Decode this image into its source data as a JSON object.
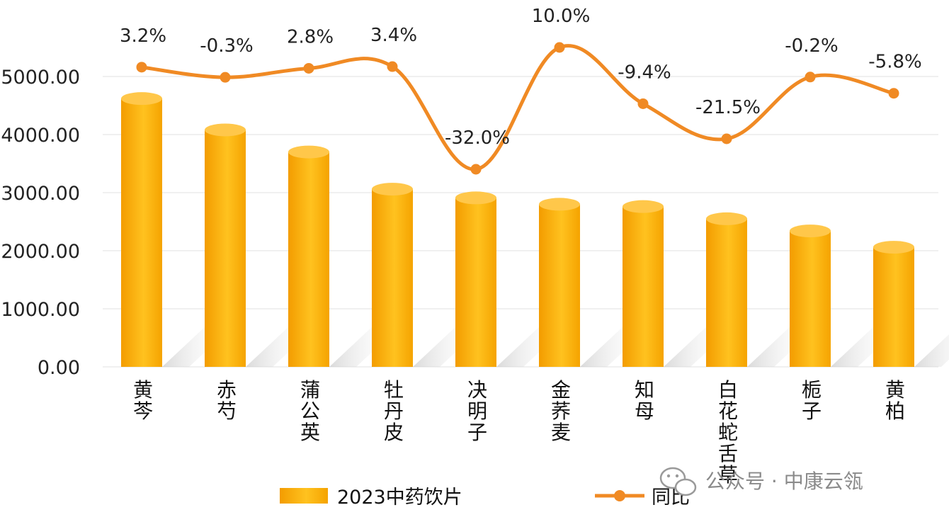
{
  "chart_data": {
    "type": "bar",
    "categories": [
      "黄芩",
      "赤芍",
      "蒲公英",
      "牡丹皮",
      "决明子",
      "金荞麦",
      "知母",
      "白花蛇舌草",
      "栀子",
      "黄柏"
    ],
    "series": [
      {
        "name": "2023中药饮片",
        "type": "bar",
        "values": [
          4620,
          4080,
          3700,
          3060,
          2910,
          2800,
          2760,
          2550,
          2340,
          2060
        ]
      },
      {
        "name": "同比",
        "type": "line",
        "values": [
          3.2,
          -0.3,
          2.8,
          3.4,
          -32.0,
          10.0,
          -9.4,
          -21.5,
          -0.2,
          -5.8
        ],
        "labels": [
          "3.2%",
          "-0.3%",
          "2.8%",
          "3.4%",
          "-32.0%",
          "10.0%",
          "-9.4%",
          "-21.5%",
          "-0.2%",
          "-5.8%"
        ]
      }
    ],
    "y_ticks": [
      "0.00",
      "1000.00",
      "2000.00",
      "3000.00",
      "4000.00",
      "5000.00"
    ],
    "ylim": [
      0,
      5000
    ],
    "y2lim": [
      -40,
      15
    ],
    "grid": true,
    "legend_position": "bottom",
    "colors": {
      "bar": "#f5a800",
      "bar_light": "#ffc93a",
      "line": "#f08a24"
    }
  },
  "watermark": {
    "text": "公众号 · 中康云瓴",
    "icon": "wechat-icon"
  }
}
